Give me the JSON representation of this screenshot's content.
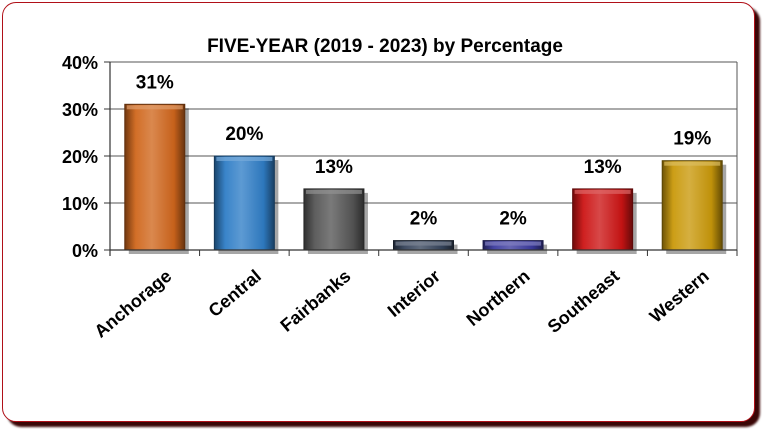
{
  "chart_data": {
    "type": "bar",
    "title": "FIVE-YEAR (2019 - 2023) by Percentage",
    "categories": [
      "Anchorage",
      "Central",
      "Fairbanks",
      "Interior",
      "Northern",
      "Southeast",
      "Western"
    ],
    "values": [
      31,
      20,
      13,
      2,
      2,
      13,
      19
    ],
    "data_labels": [
      "31%",
      "20%",
      "13%",
      "2%",
      "2%",
      "13%",
      "19%"
    ],
    "y_ticks": [
      0,
      10,
      20,
      30,
      40
    ],
    "y_tick_labels": [
      "0%",
      "10%",
      "20%",
      "30%",
      "40%"
    ],
    "ylim": [
      0,
      40
    ],
    "xlabel": "",
    "ylabel": "",
    "grid": true,
    "legend": "none",
    "colors": [
      "#d0661c",
      "#2f7dc6",
      "#555555",
      "#35435a",
      "#3b3a9e",
      "#cc1414",
      "#c9990a"
    ]
  },
  "frame": {
    "border_color": "#b01018",
    "shadow_color": "#3a0606"
  }
}
